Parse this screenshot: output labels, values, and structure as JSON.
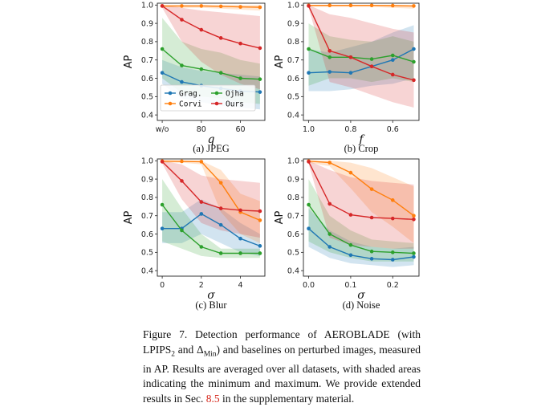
{
  "chart_data": [
    {
      "type": "line",
      "id": "jpeg",
      "subtitle": "(a) JPEG",
      "xlabel": "q",
      "ylabel": "AP",
      "x": [
        0,
        1,
        2,
        3,
        4,
        5
      ],
      "xticks": [
        {
          "x": 0,
          "label": "w/o"
        },
        {
          "x": 2,
          "label": "80"
        },
        {
          "x": 4,
          "label": "60"
        }
      ],
      "ylim": [
        0.4,
        1.0
      ],
      "yticks": [
        {
          "v": 0.4,
          "label": "0.4"
        },
        {
          "v": 0.5,
          "label": "0.5"
        },
        {
          "v": 0.6,
          "label": "0.6"
        },
        {
          "v": 0.7,
          "label": "0.7"
        },
        {
          "v": 0.8,
          "label": "0.8"
        },
        {
          "v": 0.9,
          "label": "0.9"
        },
        {
          "v": 1.0,
          "label": "1.0"
        }
      ],
      "legend": true,
      "legend_position": "bottom-left",
      "series": [
        {
          "name": "Grag.",
          "color": "#1f77b4",
          "values": [
            0.63,
            0.58,
            0.56,
            0.545,
            0.53,
            0.525
          ],
          "band_lo": [
            0.57,
            0.49,
            0.47,
            0.45,
            0.44,
            0.43
          ],
          "band_hi": [
            0.7,
            0.66,
            0.64,
            0.63,
            0.62,
            0.61
          ]
        },
        {
          "name": "Corvi",
          "color": "#ff7f0e",
          "values": [
            0.995,
            0.995,
            0.995,
            0.993,
            0.99,
            0.988
          ],
          "band_lo": [
            0.99,
            0.985,
            0.985,
            0.98,
            0.975,
            0.97
          ],
          "band_hi": [
            1.0,
            1.0,
            1.0,
            1.0,
            1.0,
            1.0
          ]
        },
        {
          "name": "Ojha",
          "color": "#2ca02c",
          "values": [
            0.76,
            0.67,
            0.65,
            0.63,
            0.6,
            0.595
          ],
          "band_lo": [
            0.6,
            0.52,
            0.5,
            0.49,
            0.47,
            0.46
          ],
          "band_hi": [
            0.93,
            0.8,
            0.76,
            0.74,
            0.7,
            0.68
          ]
        },
        {
          "name": "Ours",
          "color": "#d62728",
          "values": [
            0.995,
            0.92,
            0.865,
            0.82,
            0.79,
            0.765
          ],
          "band_lo": [
            0.985,
            0.8,
            0.69,
            0.62,
            0.57,
            0.54
          ],
          "band_hi": [
            1.0,
            0.985,
            0.97,
            0.96,
            0.95,
            0.94
          ]
        }
      ]
    },
    {
      "type": "line",
      "id": "crop",
      "subtitle": "(b) Crop",
      "xlabel": "f",
      "ylabel": "AP",
      "x": [
        1.0,
        0.9,
        0.8,
        0.7,
        0.6,
        0.5
      ],
      "xticks": [
        {
          "x": 1.0,
          "label": "1.0"
        },
        {
          "x": 0.8,
          "label": "0.8"
        },
        {
          "x": 0.6,
          "label": "0.6"
        }
      ],
      "ylim": [
        0.4,
        1.0
      ],
      "yticks": [
        {
          "v": 0.4,
          "label": "0.4"
        },
        {
          "v": 0.5,
          "label": "0.5"
        },
        {
          "v": 0.6,
          "label": "0.6"
        },
        {
          "v": 0.7,
          "label": "0.7"
        },
        {
          "v": 0.8,
          "label": "0.8"
        },
        {
          "v": 0.9,
          "label": "0.9"
        },
        {
          "v": 1.0,
          "label": "1.0"
        }
      ],
      "legend": false,
      "series": [
        {
          "name": "Grag.",
          "color": "#1f77b4",
          "values": [
            0.63,
            0.635,
            0.63,
            0.665,
            0.7,
            0.76
          ],
          "band_lo": [
            0.53,
            0.53,
            0.54,
            0.56,
            0.57,
            0.6
          ],
          "band_hi": [
            0.76,
            0.74,
            0.77,
            0.8,
            0.85,
            0.89
          ]
        },
        {
          "name": "Corvi",
          "color": "#ff7f0e",
          "values": [
            0.998,
            0.998,
            0.998,
            0.998,
            0.997,
            0.995
          ],
          "band_lo": [
            0.99,
            0.99,
            0.99,
            0.99,
            0.985,
            0.98
          ],
          "band_hi": [
            1.0,
            1.0,
            1.0,
            1.0,
            1.0,
            1.0
          ]
        },
        {
          "name": "Ojha",
          "color": "#2ca02c",
          "values": [
            0.76,
            0.715,
            0.715,
            0.705,
            0.725,
            0.69
          ],
          "band_lo": [
            0.56,
            0.6,
            0.6,
            0.58,
            0.6,
            0.58
          ],
          "band_hi": [
            0.9,
            0.83,
            0.81,
            0.8,
            0.83,
            0.8
          ]
        },
        {
          "name": "Ours",
          "color": "#d62728",
          "values": [
            0.995,
            0.75,
            0.715,
            0.665,
            0.62,
            0.59
          ],
          "band_lo": [
            0.985,
            0.58,
            0.55,
            0.51,
            0.47,
            0.44
          ],
          "band_hi": [
            1.0,
            0.95,
            0.93,
            0.9,
            0.87,
            0.85
          ]
        }
      ]
    },
    {
      "type": "line",
      "id": "blur",
      "subtitle": "(c) Blur",
      "xlabel": "σ",
      "ylabel": "AP",
      "x": [
        0,
        1,
        2,
        3,
        4,
        5
      ],
      "xticks": [
        {
          "x": 0,
          "label": "0"
        },
        {
          "x": 2,
          "label": "2"
        },
        {
          "x": 4,
          "label": "4"
        }
      ],
      "ylim": [
        0.4,
        1.0
      ],
      "yticks": [
        {
          "v": 0.4,
          "label": "0.4"
        },
        {
          "v": 0.5,
          "label": "0.5"
        },
        {
          "v": 0.6,
          "label": "0.6"
        },
        {
          "v": 0.7,
          "label": "0.7"
        },
        {
          "v": 0.8,
          "label": "0.8"
        },
        {
          "v": 0.9,
          "label": "0.9"
        },
        {
          "v": 1.0,
          "label": "1.0"
        }
      ],
      "legend": false,
      "series": [
        {
          "name": "Grag.",
          "color": "#1f77b4",
          "values": [
            0.63,
            0.63,
            0.71,
            0.65,
            0.575,
            0.535
          ],
          "band_lo": [
            0.55,
            0.55,
            0.6,
            0.55,
            0.5,
            0.48
          ],
          "band_hi": [
            0.72,
            0.72,
            0.79,
            0.74,
            0.66,
            0.6
          ]
        },
        {
          "name": "Corvi",
          "color": "#ff7f0e",
          "values": [
            0.998,
            0.997,
            0.995,
            0.88,
            0.72,
            0.675
          ],
          "band_lo": [
            0.99,
            0.99,
            0.98,
            0.72,
            0.6,
            0.55
          ],
          "band_hi": [
            1.0,
            1.0,
            1.0,
            0.95,
            0.82,
            0.78
          ]
        },
        {
          "name": "Ojha",
          "color": "#2ca02c",
          "values": [
            0.76,
            0.62,
            0.53,
            0.495,
            0.495,
            0.495
          ],
          "band_lo": [
            0.56,
            0.52,
            0.48,
            0.47,
            0.47,
            0.47
          ],
          "band_hi": [
            0.9,
            0.74,
            0.6,
            0.52,
            0.52,
            0.52
          ]
        },
        {
          "name": "Ours",
          "color": "#d62728",
          "values": [
            0.995,
            0.89,
            0.775,
            0.74,
            0.73,
            0.725
          ],
          "band_lo": [
            0.985,
            0.79,
            0.66,
            0.62,
            0.6,
            0.58
          ],
          "band_hi": [
            1.0,
            0.98,
            0.92,
            0.9,
            0.89,
            0.88
          ]
        }
      ]
    },
    {
      "type": "line",
      "id": "noise",
      "subtitle": "(d) Noise",
      "xlabel": "σ",
      "ylabel": "AP",
      "x": [
        0,
        0.05,
        0.1,
        0.15,
        0.2,
        0.25
      ],
      "xticks": [
        {
          "x": 0,
          "label": "0.0"
        },
        {
          "x": 0.1,
          "label": "0.1"
        },
        {
          "x": 0.2,
          "label": "0.2"
        }
      ],
      "ylim": [
        0.4,
        1.0
      ],
      "yticks": [
        {
          "v": 0.4,
          "label": "0.4"
        },
        {
          "v": 0.5,
          "label": "0.5"
        },
        {
          "v": 0.6,
          "label": "0.6"
        },
        {
          "v": 0.7,
          "label": "0.7"
        },
        {
          "v": 0.8,
          "label": "0.8"
        },
        {
          "v": 0.9,
          "label": "0.9"
        },
        {
          "v": 1.0,
          "label": "1.0"
        }
      ],
      "legend": false,
      "series": [
        {
          "name": "Grag.",
          "color": "#1f77b4",
          "values": [
            0.63,
            0.53,
            0.485,
            0.465,
            0.46,
            0.475
          ],
          "band_lo": [
            0.53,
            0.47,
            0.44,
            0.43,
            0.42,
            0.43
          ],
          "band_hi": [
            0.74,
            0.62,
            0.56,
            0.53,
            0.52,
            0.53
          ]
        },
        {
          "name": "Corvi",
          "color": "#ff7f0e",
          "values": [
            0.998,
            0.99,
            0.935,
            0.845,
            0.785,
            0.7
          ],
          "band_lo": [
            0.99,
            0.97,
            0.85,
            0.72,
            0.64,
            0.55
          ],
          "band_hi": [
            1.0,
            1.0,
            0.99,
            0.96,
            0.91,
            0.86
          ]
        },
        {
          "name": "Ojha",
          "color": "#2ca02c",
          "values": [
            0.76,
            0.6,
            0.54,
            0.505,
            0.5,
            0.495
          ],
          "band_lo": [
            0.56,
            0.5,
            0.47,
            0.45,
            0.45,
            0.45
          ],
          "band_hi": [
            0.9,
            0.7,
            0.62,
            0.57,
            0.56,
            0.55
          ]
        },
        {
          "name": "Ours",
          "color": "#d62728",
          "values": [
            0.995,
            0.765,
            0.705,
            0.69,
            0.685,
            0.68
          ],
          "band_lo": [
            0.985,
            0.58,
            0.54,
            0.53,
            0.52,
            0.52
          ],
          "band_hi": [
            1.0,
            0.95,
            0.91,
            0.89,
            0.88,
            0.87
          ]
        }
      ]
    }
  ],
  "caption": {
    "part1": "Figure 7. Detection performance of AEROBLADE (with LPIPS",
    "sub1": "2",
    "part2": " and Δ",
    "sub2": "Min",
    "part3": ") and baselines on perturbed images, measured in AP. Results are averaged over all datasets, with shaded areas indicating the minimum and maximum. We provide extended results in Sec. ",
    "ref": "8.5",
    "part4": " in the supplementary material."
  }
}
